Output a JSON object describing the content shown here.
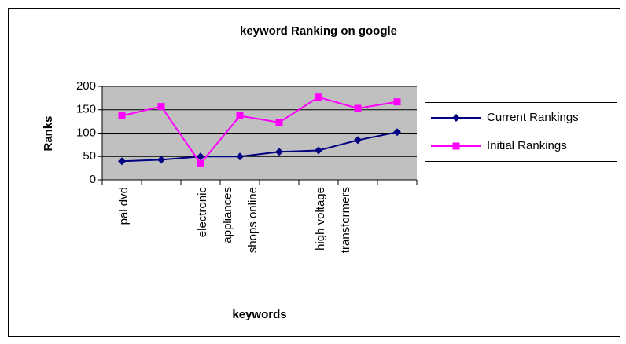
{
  "chart_data": {
    "type": "line",
    "title": "keyword Ranking on google",
    "x_label": "keywords",
    "y_label": "Ranks",
    "categories": [
      "pal dvd",
      null,
      "electronic\nappliances\nshops online",
      null,
      null,
      "high voltage\ntransformers",
      null,
      null
    ],
    "series": [
      {
        "name": "Current Rankings",
        "color": "#000080",
        "marker": "diamond",
        "values": [
          40,
          43,
          50,
          50,
          60,
          63,
          85,
          102
        ]
      },
      {
        "name": "Initial Rankings",
        "color": "#ff00ff",
        "marker": "square",
        "values": [
          137,
          157,
          35,
          137,
          123,
          177,
          153,
          167
        ]
      }
    ],
    "ylim": [
      0,
      200
    ],
    "yticks": [
      0,
      50,
      100,
      150,
      200
    ],
    "grid": true,
    "legend": "right"
  }
}
